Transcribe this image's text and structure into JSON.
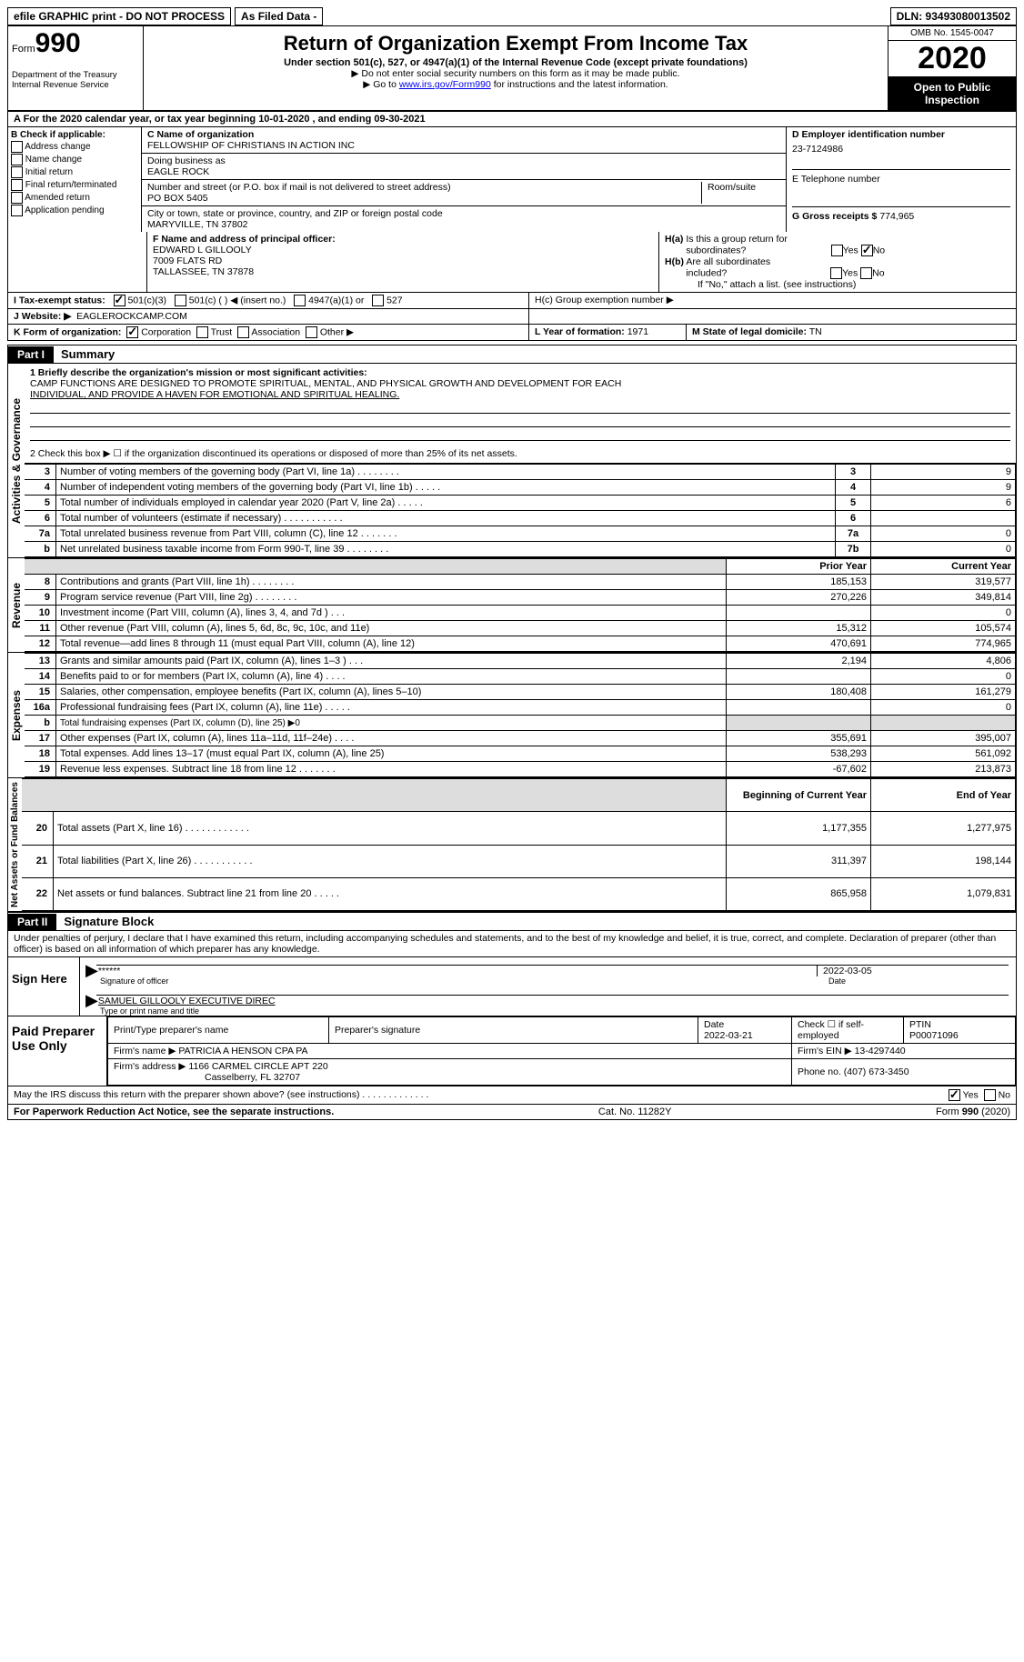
{
  "topBar": {
    "efile": "efile GRAPHIC print - DO NOT PROCESS",
    "asFiled": "As Filed Data -",
    "dln": "DLN: 93493080013502"
  },
  "header": {
    "formPrefix": "Form",
    "formNumber": "990",
    "dept": "Department of the Treasury\nInternal Revenue Service",
    "title": "Return of Organization Exempt From Income Tax",
    "subtitle": "Under section 501(c), 527, or 4947(a)(1) of the Internal Revenue Code (except private foundations)",
    "note1": "▶ Do not enter social security numbers on this form as it may be made public.",
    "note2Prefix": "▶ Go to ",
    "note2Link": "www.irs.gov/Form990",
    "note2Suffix": " for instructions and the latest information.",
    "omb": "OMB No. 1545-0047",
    "year": "2020",
    "inspect": "Open to Public Inspection"
  },
  "rowA": "A   For the 2020 calendar year, or tax year beginning 10-01-2020   , and ending 09-30-2021",
  "sectionB": {
    "header": "B Check if applicable:",
    "opts": [
      "Address change",
      "Name change",
      "Initial return",
      "Final return/terminated",
      "Amended return",
      "Application pending"
    ]
  },
  "sectionC": {
    "hdr": "C Name of organization",
    "name": "FELLOWSHIP OF CHRISTIANS IN ACTION INC",
    "dbaHdr": "Doing business as",
    "dba": "EAGLE ROCK",
    "addrHdr": "Number and street (or P.O. box if mail is not delivered to street address)",
    "room": "Room/suite",
    "addr": "PO BOX 5405",
    "cityHdr": "City or town, state or province, country, and ZIP or foreign postal code",
    "city": "MARYVILLE, TN  37802"
  },
  "sectionD": {
    "hdr": "D Employer identification number",
    "ein": "23-7124986",
    "eHdr": "E Telephone number",
    "gHdr": "G Gross receipts $",
    "gVal": "774,965"
  },
  "sectionF": {
    "hdr": "F  Name and address of principal officer:",
    "l1": "EDWARD L GILLOOLY",
    "l2": "7009 FLATS RD",
    "l3": "TALLASSEE, TN  37878"
  },
  "sectionH": {
    "ha": "H(a)  Is this a group return for subordinates?",
    "hb": "H(b)  Are all subordinates included?",
    "hbNote": "If \"No,\" attach a list. (see instructions)",
    "hc": "H(c)  Group exemption number ▶",
    "yes": "Yes",
    "no": "No"
  },
  "sectionI": {
    "hdr": "I   Tax-exempt status:",
    "o1": "501(c)(3)",
    "o2": "501(c) (  ) ◀ (insert no.)",
    "o3": "4947(a)(1) or",
    "o4": "527"
  },
  "sectionJ": {
    "hdr": "J   Website: ▶",
    "val": "EAGLEROCKCAMP.COM"
  },
  "sectionK": {
    "hdr": "K Form of organization:",
    "o1": "Corporation",
    "o2": "Trust",
    "o3": "Association",
    "o4": "Other ▶"
  },
  "sectionL": {
    "hdr": "L Year of formation:",
    "val": "1971"
  },
  "sectionM": {
    "hdr": "M State of legal domicile:",
    "val": "TN"
  },
  "partI": {
    "blk": "Part I",
    "ttl": "Summary"
  },
  "mission": {
    "l1hdr": "1 Briefly describe the organization's mission or most significant activities:",
    "text1": "CAMP FUNCTIONS ARE DESIGNED TO PROMOTE SPIRITUAL, MENTAL, AND PHYSICAL GROWTH AND DEVELOPMENT FOR EACH",
    "text2": "INDIVIDUAL, AND PROVIDE A HAVEN FOR EMOTIONAL AND SPIRITUAL HEALING.",
    "l2": "2  Check this box ▶ ☐ if the organization discontinued its operations or disposed of more than 25% of its net assets."
  },
  "sideLabels": {
    "gov": "Activities & Governance",
    "rev": "Revenue",
    "exp": "Expenses",
    "net": "Net Assets or Fund Balances"
  },
  "govLines": [
    {
      "n": "3",
      "desc": "Number of voting members of the governing body (Part VI, line 1a)    .    .    .    .    .    .    .    .",
      "ref": "3",
      "v": "9"
    },
    {
      "n": "4",
      "desc": "Number of independent voting members of the governing body (Part VI, line 1b)   .    .    .    .    .",
      "ref": "4",
      "v": "9"
    },
    {
      "n": "5",
      "desc": "Total number of individuals employed in calendar year 2020 (Part V, line 2a)    .    .    .    .    .",
      "ref": "5",
      "v": "6"
    },
    {
      "n": "6",
      "desc": "Total number of volunteers (estimate if necessary)   .    .    .    .    .    .    .    .    .    .    .",
      "ref": "6",
      "v": ""
    },
    {
      "n": "7a",
      "desc": "Total unrelated business revenue from Part VIII, column (C), line 12   .    .    .    .    .    .    .",
      "ref": "7a",
      "v": "0"
    },
    {
      "n": "b",
      "desc": "Net unrelated business taxable income from Form 990-T, line 39   .    .    .    .    .    .    .    .",
      "ref": "7b",
      "v": "0"
    }
  ],
  "yearHdrs": {
    "prior": "Prior Year",
    "current": "Current Year"
  },
  "revLines": [
    {
      "n": "8",
      "desc": "Contributions and grants (Part VIII, line 1h)    .    .    .    .    .    .    .    .",
      "p": "185,153",
      "c": "319,577"
    },
    {
      "n": "9",
      "desc": "Program service revenue (Part VIII, line 2g)    .    .    .    .    .    .    .    .",
      "p": "270,226",
      "c": "349,814"
    },
    {
      "n": "10",
      "desc": "Investment income (Part VIII, column (A), lines 3, 4, and 7d )    .    .    .",
      "p": "",
      "c": "0"
    },
    {
      "n": "11",
      "desc": "Other revenue (Part VIII, column (A), lines 5, 6d, 8c, 9c, 10c, and 11e)",
      "p": "15,312",
      "c": "105,574"
    },
    {
      "n": "12",
      "desc": "Total revenue—add lines 8 through 11 (must equal Part VIII, column (A), line 12)",
      "p": "470,691",
      "c": "774,965"
    }
  ],
  "expLines": [
    {
      "n": "13",
      "desc": "Grants and similar amounts paid (Part IX, column (A), lines 1–3 )    .    .    .",
      "p": "2,194",
      "c": "4,806"
    },
    {
      "n": "14",
      "desc": "Benefits paid to or for members (Part IX, column (A), line 4)    .    .    .    .",
      "p": "",
      "c": "0"
    },
    {
      "n": "15",
      "desc": "Salaries, other compensation, employee benefits (Part IX, column (A), lines 5–10)",
      "p": "180,408",
      "c": "161,279"
    },
    {
      "n": "16a",
      "desc": "Professional fundraising fees (Part IX, column (A), line 11e)    .    .    .    .    .",
      "p": "",
      "c": "0"
    },
    {
      "n": "b",
      "desc": "Total fundraising expenses (Part IX, column (D), line 25) ▶0",
      "p": "shade",
      "c": "shade"
    },
    {
      "n": "17",
      "desc": "Other expenses (Part IX, column (A), lines 11a–11d, 11f–24e)    .    .    .    .",
      "p": "355,691",
      "c": "395,007"
    },
    {
      "n": "18",
      "desc": "Total expenses. Add lines 13–17 (must equal Part IX, column (A), line 25)",
      "p": "538,293",
      "c": "561,092"
    },
    {
      "n": "19",
      "desc": "Revenue less expenses. Subtract line 18 from line 12    .    .    .    .    .    .    .",
      "p": "-67,602",
      "c": "213,873"
    }
  ],
  "netHdrs": {
    "b": "Beginning of Current Year",
    "e": "End of Year"
  },
  "netLines": [
    {
      "n": "20",
      "desc": "Total assets (Part X, line 16)    .    .    .    .    .    .    .    .    .    .    .    .",
      "p": "1,177,355",
      "c": "1,277,975"
    },
    {
      "n": "21",
      "desc": "Total liabilities (Part X, line 26)    .    .    .    .    .    .    .    .    .    .    .",
      "p": "311,397",
      "c": "198,144"
    },
    {
      "n": "22",
      "desc": "Net assets or fund balances. Subtract line 21 from line 20    .    .    .    .    .",
      "p": "865,958",
      "c": "1,079,831"
    }
  ],
  "partII": {
    "blk": "Part II",
    "ttl": "Signature Block"
  },
  "perjury": "Under penalties of perjury, I declare that I have examined this return, including accompanying schedules and statements, and to the best of my knowledge and belief, it is true, correct, and complete. Declaration of preparer (other than officer) is based on all information of which preparer has any knowledge.",
  "sign": {
    "side": "Sign Here",
    "stars": "******",
    "sigOfficer": "Signature of officer",
    "date": "2022-03-05",
    "dateHdr": "Date",
    "nameTitle": "SAMUEL GILLOOLY EXECUTIVE DIREC",
    "nameHdr": "Type or print name and title"
  },
  "prep": {
    "side": "Paid Preparer Use Only",
    "c1": "Print/Type preparer's name",
    "c2": "Preparer's signature",
    "c3": "Date",
    "c3v": "2022-03-21",
    "c4": "Check ☐ if self-employed",
    "c5": "PTIN",
    "c5v": "P00071096",
    "firmName": "Firm's name     ▶ PATRICIA A HENSON CPA PA",
    "firmEin": "Firm's EIN ▶ 13-4297440",
    "firmAddr": "Firm's address ▶ 1166 CARMEL CIRCLE APT 220",
    "firmCity": "Casselberry, FL  32707",
    "phone": "Phone no. (407) 673-3450",
    "discuss": "May the IRS discuss this return with the preparer shown above? (see instructions)    .    .    .    .    .    .    .    .    .    .    .    .    ."
  },
  "footer": {
    "left": "For Paperwork Reduction Act Notice, see the separate instructions.",
    "mid": "Cat. No. 11282Y",
    "right": "Form 990 (2020)"
  }
}
